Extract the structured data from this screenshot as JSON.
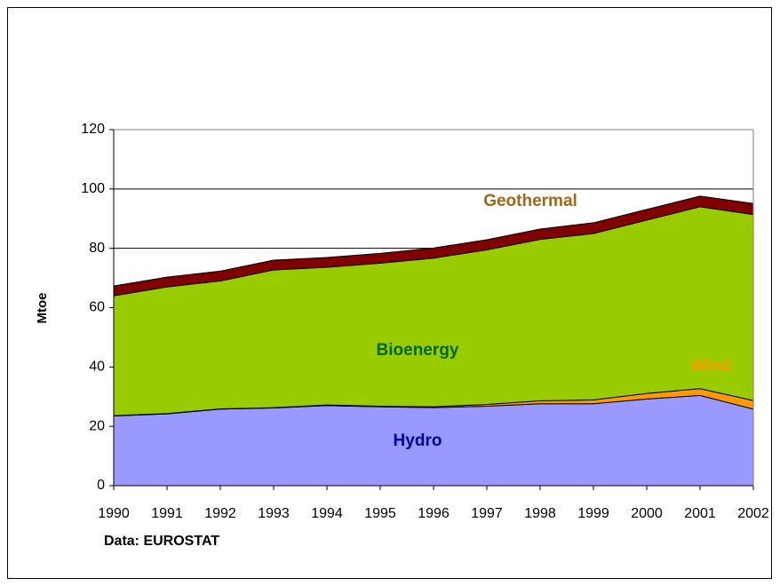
{
  "chart_data": {
    "type": "stacked_area",
    "x": [
      1990,
      1991,
      1992,
      1993,
      1994,
      1995,
      1996,
      1997,
      1998,
      1999,
      2000,
      2001,
      2002
    ],
    "series": [
      {
        "name": "Hydro",
        "color": "#9999ff",
        "label_color": "#000099",
        "values": [
          23.5,
          24.2,
          25.8,
          26.2,
          27.0,
          26.6,
          26.3,
          26.8,
          27.6,
          27.6,
          29.2,
          30.4,
          25.8
        ]
      },
      {
        "name": "Wind",
        "color": "#ff9900",
        "label_color": "#ff9900",
        "values": [
          0.1,
          0.1,
          0.1,
          0.1,
          0.2,
          0.2,
          0.3,
          0.6,
          1.0,
          1.3,
          1.9,
          2.3,
          2.9
        ]
      },
      {
        "name": "Bioenergy",
        "color": "#99cc00",
        "label_color": "#006600",
        "values": [
          40.4,
          42.7,
          43.1,
          46.4,
          46.4,
          48.2,
          50.1,
          52.1,
          54.4,
          56.1,
          58.4,
          61.3,
          62.7
        ]
      },
      {
        "name": "Geothermal",
        "color": "#800000",
        "label_color": "#a0661a",
        "values": [
          3.3,
          3.3,
          3.3,
          3.3,
          3.3,
          3.3,
          3.4,
          3.4,
          3.5,
          3.6,
          3.6,
          3.6,
          3.7
        ]
      }
    ],
    "ylabel": "Mtoe",
    "source": "Data: EUROSTAT",
    "xlim": [
      1990,
      2002
    ],
    "ylim": [
      0,
      120
    ],
    "yticks": [
      0,
      20,
      40,
      60,
      80,
      100,
      120
    ],
    "grid": true
  }
}
